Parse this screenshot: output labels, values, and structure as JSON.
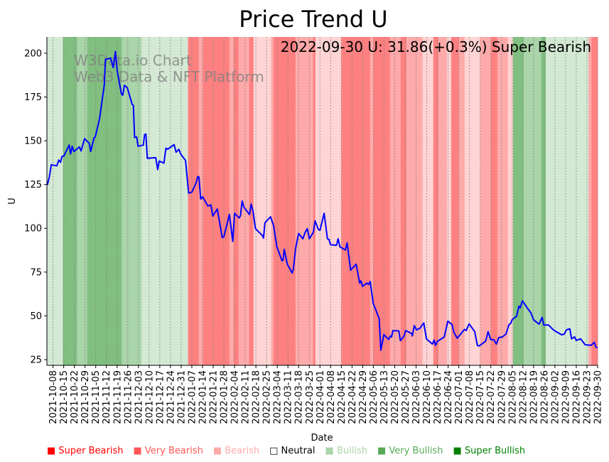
{
  "chart_data": {
    "type": "line",
    "title": "Price Trend U",
    "annotation": "2022-09-30 U: 31.86(+0.3%) Super Bearish",
    "watermark": [
      "W3Data.io Chart",
      "Web3 Data & NFT Platform"
    ],
    "xlabel": "Date",
    "ylabel": "U",
    "x_unit": "days since 2021-10-04",
    "xlim": [
      0,
      361
    ],
    "ylim": [
      21.75,
      209.3
    ],
    "yticks": [
      25,
      50,
      75,
      100,
      125,
      150,
      175,
      200
    ],
    "grid": "vertical dotted at x ticks",
    "xtick_first_day": 4,
    "xtick_step_days": 7,
    "xticks": [
      "2021-10-08",
      "2021-10-15",
      "2021-10-22",
      "2021-10-29",
      "2021-11-05",
      "2021-11-12",
      "2021-11-19",
      "2021-11-26",
      "2021-12-03",
      "2021-12-10",
      "2021-12-17",
      "2021-12-24",
      "2021-12-31",
      "2022-01-07",
      "2022-01-14",
      "2022-01-21",
      "2022-01-28",
      "2022-02-04",
      "2022-02-11",
      "2022-02-18",
      "2022-02-25",
      "2022-03-04",
      "2022-03-11",
      "2022-03-18",
      "2022-03-25",
      "2022-04-01",
      "2022-04-08",
      "2022-04-15",
      "2022-04-22",
      "2022-04-29",
      "2022-05-06",
      "2022-05-13",
      "2022-05-20",
      "2022-05-27",
      "2022-06-03",
      "2022-06-10",
      "2022-06-17",
      "2022-06-24",
      "2022-07-01",
      "2022-07-08",
      "2022-07-15",
      "2022-07-22",
      "2022-07-29",
      "2022-08-05",
      "2022-08-12",
      "2022-08-19",
      "2022-08-26",
      "2022-09-02",
      "2022-09-09",
      "2022-09-16",
      "2022-09-23",
      "2022-09-30"
    ],
    "series": [
      {
        "name": "U",
        "color": "#0000ff",
        "points": [
          [
            0.3,
            124.8
          ],
          [
            1.5,
            128.9
          ],
          [
            2.9,
            136.3
          ],
          [
            6.5,
            135.7
          ],
          [
            7.8,
            139.0
          ],
          [
            8.9,
            137.7
          ],
          [
            9.9,
            141.1
          ],
          [
            11.2,
            141.4
          ],
          [
            14.6,
            147.6
          ],
          [
            15.5,
            142.5
          ],
          [
            16.6,
            146.9
          ],
          [
            17.7,
            143.8
          ],
          [
            21.3,
            146.5
          ],
          [
            22.4,
            144.2
          ],
          [
            24.7,
            151.2
          ],
          [
            27.8,
            148.5
          ],
          [
            28.7,
            143.8
          ],
          [
            30.9,
            151.6
          ],
          [
            31.7,
            152.2
          ],
          [
            34.5,
            162.7
          ],
          [
            37.6,
            181.7
          ],
          [
            38.4,
            196.5
          ],
          [
            41.8,
            197.2
          ],
          [
            43.5,
            191.8
          ],
          [
            44.9,
            201.0
          ],
          [
            46.1,
            189.8
          ],
          [
            48.8,
            176.9
          ],
          [
            49.7,
            176.0
          ],
          [
            50.8,
            181.7
          ],
          [
            52.7,
            180.3
          ],
          [
            55.9,
            170.8
          ],
          [
            56.7,
            170.2
          ],
          [
            57.5,
            151.9
          ],
          [
            58.9,
            152.2
          ],
          [
            59.7,
            146.9
          ],
          [
            63.2,
            147.5
          ],
          [
            64.0,
            153.5
          ],
          [
            64.9,
            153.9
          ],
          [
            65.8,
            140.0
          ],
          [
            71.3,
            140.4
          ],
          [
            72.6,
            133.6
          ],
          [
            73.6,
            138.4
          ],
          [
            76.7,
            137.3
          ],
          [
            78.0,
            145.8
          ],
          [
            79.1,
            145.1
          ],
          [
            83.4,
            147.8
          ],
          [
            84.7,
            143.5
          ],
          [
            86.5,
            145.1
          ],
          [
            87.7,
            142.4
          ],
          [
            90.9,
            138.8
          ],
          [
            92.9,
            120.1
          ],
          [
            94.5,
            120.5
          ],
          [
            95.1,
            120.8
          ],
          [
            97.9,
            126.2
          ],
          [
            98.9,
            129.6
          ],
          [
            99.7,
            129.3
          ],
          [
            100.8,
            116.7
          ],
          [
            102.0,
            118.1
          ],
          [
            105.6,
            112.7
          ],
          [
            107.5,
            113.4
          ],
          [
            108.7,
            107.0
          ],
          [
            111.7,
            111.0
          ],
          [
            114.9,
            94.8
          ],
          [
            116.0,
            95.1
          ],
          [
            119.6,
            107.9
          ],
          [
            121.8,
            92.6
          ],
          [
            123.0,
            108.6
          ],
          [
            126.1,
            105.9
          ],
          [
            126.9,
            107.3
          ],
          [
            128.0,
            115.6
          ],
          [
            129.2,
            112.0
          ],
          [
            132.8,
            107.9
          ],
          [
            133.9,
            113.8
          ],
          [
            135.1,
            110.0
          ],
          [
            136.7,
            99.8
          ],
          [
            141.4,
            95.7
          ],
          [
            142.0,
            94.4
          ],
          [
            142.9,
            103.2
          ],
          [
            146.6,
            106.6
          ],
          [
            148.6,
            101.6
          ],
          [
            150.7,
            89.7
          ],
          [
            154.1,
            81.5
          ],
          [
            154.8,
            81.8
          ],
          [
            155.6,
            88.0
          ],
          [
            157.6,
            79.5
          ],
          [
            160.8,
            74.5
          ],
          [
            161.6,
            76.8
          ],
          [
            163.0,
            88.3
          ],
          [
            165.0,
            97.1
          ],
          [
            167.8,
            94.0
          ],
          [
            169.3,
            97.8
          ],
          [
            170.7,
            99.8
          ],
          [
            172.0,
            94.0
          ],
          [
            174.7,
            97.8
          ],
          [
            175.8,
            104.3
          ],
          [
            177.9,
            99.4
          ],
          [
            179.0,
            98.9
          ],
          [
            181.7,
            108.6
          ],
          [
            183.9,
            94.0
          ],
          [
            184.9,
            93.7
          ],
          [
            185.9,
            90.7
          ],
          [
            189.8,
            90.3
          ],
          [
            190.9,
            94.0
          ],
          [
            192.1,
            89.4
          ],
          [
            192.9,
            89.0
          ],
          [
            195.7,
            87.6
          ],
          [
            196.8,
            91.7
          ],
          [
            199.1,
            76.1
          ],
          [
            202.7,
            79.5
          ],
          [
            205.0,
            68.7
          ],
          [
            205.8,
            70.0
          ],
          [
            206.9,
            66.9
          ],
          [
            209.7,
            68.7
          ],
          [
            210.8,
            68.0
          ],
          [
            211.9,
            69.6
          ],
          [
            213.9,
            57.2
          ],
          [
            217.8,
            48.4
          ],
          [
            218.9,
            30.4
          ],
          [
            220.9,
            39.3
          ],
          [
            224.0,
            36.6
          ],
          [
            225.2,
            38.5
          ],
          [
            225.9,
            37.9
          ],
          [
            226.8,
            41.6
          ],
          [
            230.7,
            41.4
          ],
          [
            231.7,
            35.8
          ],
          [
            234.1,
            38.5
          ],
          [
            235.2,
            41.6
          ],
          [
            239.2,
            39.9
          ],
          [
            239.5,
            38.5
          ],
          [
            240.8,
            44.4
          ],
          [
            242.3,
            42.0
          ],
          [
            244.6,
            43.0
          ],
          [
            247.0,
            46.0
          ],
          [
            248.8,
            36.9
          ],
          [
            252.7,
            33.9
          ],
          [
            253.8,
            36.2
          ],
          [
            254.7,
            33.1
          ],
          [
            255.8,
            35.3
          ],
          [
            260.5,
            38.0
          ],
          [
            262.8,
            47.0
          ],
          [
            265.6,
            45.0
          ],
          [
            266.7,
            40.7
          ],
          [
            269.0,
            37.2
          ],
          [
            273.7,
            42.3
          ],
          [
            274.8,
            41.6
          ],
          [
            276.8,
            45.4
          ],
          [
            280.4,
            41.0
          ],
          [
            282.2,
            33.1
          ],
          [
            283.3,
            32.8
          ],
          [
            287.6,
            35.6
          ],
          [
            289.2,
            41.0
          ],
          [
            290.8,
            36.6
          ],
          [
            293.1,
            36.2
          ],
          [
            294.6,
            33.9
          ],
          [
            296.2,
            37.6
          ],
          [
            298.6,
            38.0
          ],
          [
            300.9,
            39.6
          ],
          [
            302.9,
            45.0
          ],
          [
            304.0,
            45.7
          ],
          [
            305.1,
            48.0
          ],
          [
            307.9,
            49.8
          ],
          [
            309.4,
            55.6
          ],
          [
            310.2,
            54.5
          ],
          [
            311.7,
            58.6
          ],
          [
            314.9,
            54.5
          ],
          [
            317.2,
            51.8
          ],
          [
            319.1,
            47.7
          ],
          [
            322.6,
            45.3
          ],
          [
            324.6,
            49.1
          ],
          [
            325.7,
            44.8
          ],
          [
            328.8,
            44.8
          ],
          [
            330.8,
            43.0
          ],
          [
            332.7,
            41.6
          ],
          [
            337.4,
            39.2
          ],
          [
            339.2,
            39.6
          ],
          [
            340.5,
            42.0
          ],
          [
            342.8,
            42.6
          ],
          [
            343.9,
            36.9
          ],
          [
            345.9,
            38.0
          ],
          [
            347.0,
            36.0
          ],
          [
            349.8,
            36.9
          ],
          [
            352.9,
            33.5
          ],
          [
            356.8,
            33.2
          ],
          [
            358.8,
            34.9
          ],
          [
            359.9,
            32.2
          ],
          [
            361.0,
            31.86
          ]
        ]
      }
    ],
    "sentiment_bands": [
      [
        0,
        10.5,
        1
      ],
      [
        10.5,
        19.8,
        3
      ],
      [
        19.8,
        26.4,
        2
      ],
      [
        26.4,
        49,
        3
      ],
      [
        49,
        62,
        2
      ],
      [
        62,
        92.5,
        1
      ],
      [
        92.5,
        99.5,
        -3
      ],
      [
        99.5,
        102.3,
        -2
      ],
      [
        102.3,
        119.6,
        -3
      ],
      [
        119.6,
        122.4,
        -2
      ],
      [
        122.4,
        125.6,
        -3
      ],
      [
        125.6,
        132.6,
        -2
      ],
      [
        132.6,
        135.4,
        -3
      ],
      [
        135.4,
        147,
        -1
      ],
      [
        147,
        148.5,
        -2
      ],
      [
        148.5,
        162.9,
        -3
      ],
      [
        162.9,
        174.5,
        -2
      ],
      [
        174.5,
        176,
        -3
      ],
      [
        176,
        193,
        -1
      ],
      [
        193,
        211.8,
        -3
      ],
      [
        211.8,
        214,
        -2
      ],
      [
        214,
        224.9,
        -3
      ],
      [
        224.9,
        231.9,
        -2
      ],
      [
        231.9,
        235.6,
        -3
      ],
      [
        235.6,
        246.3,
        -2
      ],
      [
        246.3,
        253.3,
        -1
      ],
      [
        253.3,
        256.6,
        -3
      ],
      [
        256.6,
        262.2,
        -2
      ],
      [
        262.2,
        265,
        -1
      ],
      [
        265,
        270,
        -3
      ],
      [
        270,
        273.8,
        -2
      ],
      [
        273.8,
        284,
        -1
      ],
      [
        284,
        291,
        -2
      ],
      [
        291,
        295.2,
        -3
      ],
      [
        295.2,
        302.2,
        -2
      ],
      [
        302.2,
        305.5,
        -1
      ],
      [
        305.5,
        312.5,
        3
      ],
      [
        312.5,
        324,
        2
      ],
      [
        324,
        327,
        3
      ],
      [
        327,
        355,
        1
      ],
      [
        355,
        357,
        -2
      ],
      [
        357,
        361,
        -3
      ]
    ],
    "band_colors": {
      "-3": "#ff8080",
      "-2": "#ffaaaa",
      "-1": "#ffd4d4",
      "0": "#ffffff",
      "1": "#d4e9d4",
      "2": "#aad4aa",
      "3": "#80bf80"
    },
    "legend_placement": "bottom",
    "legend": [
      {
        "label": "Super Bearish",
        "color": "#ff0000",
        "symbol": "■"
      },
      {
        "label": "Very Bearish",
        "color": "#ff5555",
        "symbol": "■"
      },
      {
        "label": "Bearish",
        "color": "#ffaaaa",
        "symbol": "■"
      },
      {
        "label": "Neutral",
        "color": "#000000",
        "symbol": "□"
      },
      {
        "label": "Bullish",
        "color": "#aad4aa",
        "symbol": "■"
      },
      {
        "label": "Very Bullish",
        "color": "#55aa55",
        "symbol": "■"
      },
      {
        "label": "Super Bullish",
        "color": "#008000",
        "symbol": "■"
      }
    ]
  }
}
